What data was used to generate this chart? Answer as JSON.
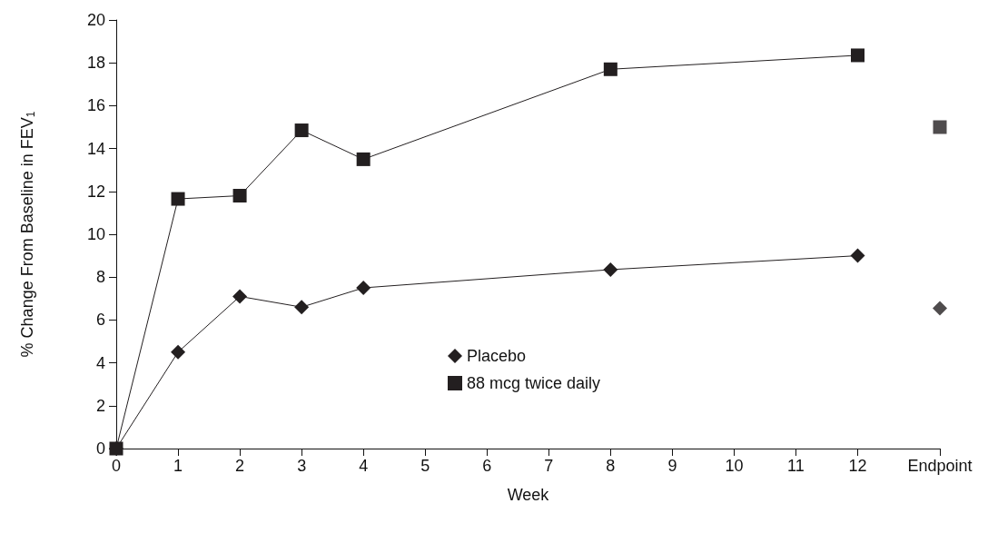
{
  "chart_data": {
    "type": "line",
    "xlabel": "Week",
    "ylabel": "% Change From Baseline in FEV$_{1}$",
    "xlim": [
      0,
      13.33
    ],
    "xticks": [
      0,
      1,
      2,
      3,
      4,
      5,
      6,
      7,
      8,
      9,
      10,
      11,
      12,
      {
        "value": 13.33,
        "label": "Endpoint"
      }
    ],
    "ylim": [
      0,
      20
    ],
    "yticks": [
      0,
      2,
      4,
      6,
      8,
      10,
      12,
      14,
      16,
      18,
      20
    ],
    "grid": false,
    "legend": "bottom",
    "series": [
      {
        "name": "Placebo",
        "color": "#231f20",
        "marker": "diamond",
        "x": [
          0,
          1,
          2,
          3,
          4,
          8,
          12
        ],
        "values": [
          0,
          4.5,
          7.1,
          6.6,
          7.5,
          8.35,
          9.0
        ]
      },
      {
        "name": "88 mcg twice daily",
        "color": "#231f20",
        "marker": "square",
        "x": [
          0,
          1,
          2,
          3,
          4,
          8,
          12
        ],
        "values": [
          0,
          11.65,
          11.8,
          14.85,
          13.5,
          17.7,
          18.35
        ]
      },
      {
        "type": "scatter",
        "color": "#231f20",
        "marker": "diamond",
        "x": [
          13.33
        ],
        "values": [
          6.55
        ]
      },
      {
        "type": "scatter",
        "color": "#231f20",
        "marker": "square",
        "x": [
          13.33
        ],
        "values": [
          15.0
        ]
      }
    ]
  }
}
